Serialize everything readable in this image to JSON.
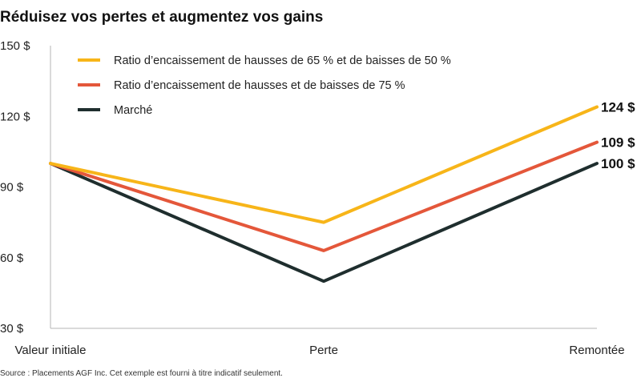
{
  "chart_data": {
    "type": "line",
    "title": "Réduisez vos pertes et augmentez vos gains",
    "categories": [
      "Valeur initiale",
      "Perte",
      "Remontée"
    ],
    "ylim": [
      30,
      150
    ],
    "y_ticks": [
      {
        "value": 150,
        "label": "150 $"
      },
      {
        "value": 120,
        "label": "120 $"
      },
      {
        "value": 90,
        "label": "90 $"
      },
      {
        "value": 60,
        "label": "60 $"
      },
      {
        "value": 30,
        "label": "30 $"
      }
    ],
    "series": [
      {
        "name": "Ratio d’encaissement de hausses de 65 % et de baisses de 50 %",
        "color": "#F7B519",
        "values": [
          100,
          75,
          124
        ],
        "end_label": "124 $"
      },
      {
        "name": "Ratio d’encaissement de hausses et de baisses de 75 %",
        "color": "#E4573A",
        "values": [
          100,
          63,
          109
        ],
        "end_label": "109 $"
      },
      {
        "name": "Marché",
        "color": "#1F2E2E",
        "values": [
          100,
          50,
          100
        ],
        "end_label": "100 $"
      }
    ],
    "legend_position": "top-left",
    "grid": false,
    "source": "Source : Placements AGF Inc. Cet exemple est fourni à titre indicatif seulement."
  }
}
